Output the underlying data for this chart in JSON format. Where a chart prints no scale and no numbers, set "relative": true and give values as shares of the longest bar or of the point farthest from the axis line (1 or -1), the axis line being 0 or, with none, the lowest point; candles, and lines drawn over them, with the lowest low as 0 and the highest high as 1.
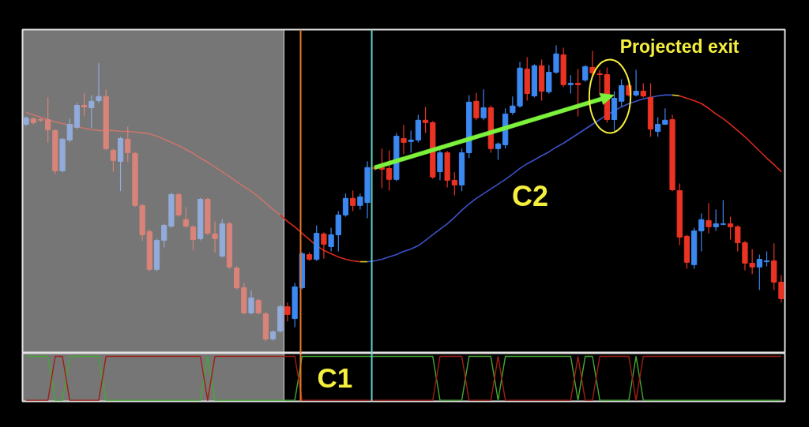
{
  "chart_data": [
    {
      "type": "candlestick",
      "relative": true,
      "categories": [
        null,
        null,
        null,
        null,
        null,
        null,
        null,
        null,
        null,
        null,
        null,
        null,
        null,
        null,
        null,
        null,
        null,
        null,
        null,
        null,
        null,
        null,
        null,
        null,
        null,
        null,
        null,
        null,
        null,
        null,
        null,
        null,
        null,
        null,
        null,
        null,
        null,
        null,
        null,
        null,
        null,
        null,
        null,
        null,
        null,
        null,
        null,
        null,
        null,
        null,
        null,
        null,
        null,
        null,
        null,
        null,
        null,
        null,
        null,
        null,
        null,
        null,
        null,
        null,
        null,
        null,
        null,
        null,
        null,
        null,
        null,
        null,
        null,
        null,
        null,
        null,
        null,
        null,
        null,
        null,
        null,
        null,
        null,
        null,
        null,
        null,
        null,
        null,
        null,
        null,
        null,
        null,
        null,
        null,
        null,
        null,
        null,
        null,
        null,
        null,
        null,
        null,
        null,
        null,
        null
      ],
      "ohlc": [
        [
          0.733,
          0.76,
          0.728,
          0.755
        ],
        [
          0.752,
          0.757,
          0.733,
          0.739
        ],
        [
          0.749,
          0.755,
          0.741,
          0.747
        ],
        [
          0.749,
          0.824,
          0.672,
          0.715
        ],
        [
          0.712,
          0.717,
          0.565,
          0.576
        ],
        [
          0.576,
          0.688,
          0.571,
          0.683
        ],
        [
          0.68,
          0.752,
          0.672,
          0.733
        ],
        [
          0.723,
          0.805,
          0.717,
          0.797
        ],
        [
          0.797,
          0.84,
          0.76,
          0.792
        ],
        [
          0.789,
          0.832,
          0.72,
          0.811
        ],
        [
          0.813,
          0.939,
          0.805,
          0.827
        ],
        [
          0.827,
          0.851,
          0.645,
          0.651
        ],
        [
          0.645,
          0.651,
          0.573,
          0.611
        ],
        [
          0.608,
          0.691,
          0.507,
          0.685
        ],
        [
          0.683,
          0.725,
          0.605,
          0.637
        ],
        [
          0.635,
          0.64,
          0.453,
          0.459
        ],
        [
          0.459,
          0.464,
          0.339,
          0.36
        ],
        [
          0.371,
          0.379,
          0.237,
          0.243
        ],
        [
          0.243,
          0.347,
          0.237,
          0.341
        ],
        [
          0.341,
          0.397,
          0.317,
          0.392
        ],
        [
          0.389,
          0.501,
          0.384,
          0.496
        ],
        [
          0.496,
          0.501,
          0.421,
          0.427
        ],
        [
          0.411,
          0.453,
          0.384,
          0.389
        ],
        [
          0.387,
          0.392,
          0.307,
          0.344
        ],
        [
          0.347,
          0.485,
          0.341,
          0.48
        ],
        [
          0.48,
          0.485,
          0.36,
          0.365
        ],
        [
          0.363,
          0.405,
          0.299,
          0.347
        ],
        [
          0.288,
          0.413,
          0.283,
          0.397
        ],
        [
          0.397,
          0.403,
          0.245,
          0.251
        ],
        [
          0.248,
          0.253,
          0.176,
          0.181
        ],
        [
          0.181,
          0.197,
          0.091,
          0.096
        ],
        [
          0.096,
          0.171,
          0.091,
          0.147
        ],
        [
          0.139,
          0.144,
          0.091,
          0.096
        ],
        [
          0.093,
          0.099,
          0,
          0.008
        ],
        [
          0.008,
          0.037,
          0.003,
          0.032
        ],
        [
          0.035,
          0.123,
          0.029,
          0.117
        ],
        [
          0.117,
          0.131,
          0.067,
          0.091
        ],
        [
          0.077,
          0.197,
          0.048,
          0.184
        ],
        [
          0.181,
          0.301,
          0.176,
          0.296
        ],
        [
          0.293,
          0.301,
          0.272,
          0.277
        ],
        [
          0.277,
          0.392,
          0.272,
          0.365
        ],
        [
          0.363,
          0.368,
          0.28,
          0.328
        ],
        [
          0.32,
          0.384,
          0.304,
          0.36
        ],
        [
          0.36,
          0.44,
          0.304,
          0.427
        ],
        [
          0.427,
          0.499,
          0.421,
          0.483
        ],
        [
          0.483,
          0.509,
          0.44,
          0.459
        ],
        [
          0.459,
          0.499,
          0.445,
          0.488
        ],
        [
          0.469,
          0.608,
          0.416,
          0.587
        ],
        [
          0.587,
          0.592,
          0.576,
          0.584
        ],
        [
          0.587,
          0.651,
          0.517,
          0.581
        ],
        [
          0.584,
          0.645,
          0.509,
          0.547
        ],
        [
          0.547,
          0.704,
          0.541,
          0.693
        ],
        [
          0.685,
          0.731,
          0.632,
          0.672
        ],
        [
          0.675,
          0.712,
          0.637,
          0.68
        ],
        [
          0.68,
          0.765,
          0.672,
          0.747
        ],
        [
          0.747,
          0.792,
          0.704,
          0.739
        ],
        [
          0.739,
          0.744,
          0.549,
          0.555
        ],
        [
          0.573,
          0.645,
          0.544,
          0.637
        ],
        [
          0.637,
          0.643,
          0.52,
          0.544
        ],
        [
          0.544,
          0.571,
          0.493,
          0.528
        ],
        [
          0.528,
          0.651,
          0.507,
          0.637
        ],
        [
          0.637,
          0.832,
          0.619,
          0.808
        ],
        [
          0.811,
          0.84,
          0.747,
          0.755
        ],
        [
          0.755,
          0.851,
          0.747,
          0.789
        ],
        [
          0.789,
          0.797,
          0.637,
          0.651
        ],
        [
          0.651,
          0.672,
          0.613,
          0.667
        ],
        [
          0.664,
          0.787,
          0.651,
          0.768
        ],
        [
          0.773,
          0.827,
          0.765,
          0.795
        ],
        [
          0.795,
          0.944,
          0.789,
          0.923
        ],
        [
          0.92,
          0.96,
          0.813,
          0.837
        ],
        [
          0.829,
          0.936,
          0.824,
          0.931
        ],
        [
          0.931,
          0.952,
          0.813,
          0.845
        ],
        [
          0.843,
          0.933,
          0.837,
          0.909
        ],
        [
          0.909,
          1,
          0.904,
          0.971
        ],
        [
          0.968,
          0.992,
          0.859,
          0.867
        ],
        [
          0.867,
          0.899,
          0.837,
          0.872
        ],
        [
          0.872,
          0.92,
          0.76,
          0.867
        ],
        [
          0.883,
          0.933,
          0.877,
          0.928
        ],
        [
          0.925,
          0.981,
          0.899,
          0.907
        ],
        [
          0.904,
          0.917,
          0.832,
          0.901
        ],
        [
          0.901,
          0.925,
          0.739,
          0.749
        ],
        [
          0.749,
          0.845,
          0.712,
          0.821
        ],
        [
          0.811,
          0.885,
          0.792,
          0.864
        ],
        [
          0.864,
          0.869,
          0.827,
          0.832
        ],
        [
          0.832,
          0.917,
          0.827,
          0.845
        ],
        [
          0.845,
          0.872,
          0.824,
          0.829
        ],
        [
          0.824,
          0.872,
          0.691,
          0.717
        ],
        [
          0.709,
          0.757,
          0.691,
          0.733
        ],
        [
          0.733,
          0.787,
          0.731,
          0.747
        ],
        [
          0.749,
          0.765,
          0.507,
          0.512
        ],
        [
          0.509,
          0.533,
          0.325,
          0.352
        ],
        [
          0.355,
          0.36,
          0.245,
          0.267
        ],
        [
          0.259,
          0.384,
          0.245,
          0.373
        ],
        [
          0.373,
          0.432,
          0.304,
          0.411
        ],
        [
          0.408,
          0.467,
          0.365,
          0.387
        ],
        [
          0.387,
          0.445,
          0.373,
          0.397
        ],
        [
          0.395,
          0.477,
          0.392,
          0.397
        ],
        [
          0.397,
          0.421,
          0.344,
          0.387
        ],
        [
          0.387,
          0.392,
          0.304,
          0.333
        ],
        [
          0.333,
          0.339,
          0.24,
          0.264
        ],
        [
          0.264,
          0.312,
          0.227,
          0.251
        ],
        [
          0.251,
          0.293,
          0.173,
          0.277
        ],
        [
          0.269,
          0.304,
          0.253,
          0.272
        ],
        [
          0.272,
          0.331,
          0.173,
          0.2
        ],
        [
          0.2,
          0.224,
          0.131,
          0.144
        ]
      ],
      "colors": [
        "#93abd8",
        "#d8847a",
        "#d8847a",
        "#d8847a",
        "#d8847a",
        "#93abd8",
        "#93abd8",
        "#93abd8",
        "#d8847a",
        "#93abd8",
        "#93abd8",
        "#d8847a",
        "#d8847a",
        "#93abd8",
        "#d8847a",
        "#d8847a",
        "#d8847a",
        "#d8847a",
        "#93abd8",
        "#93abd8",
        "#93abd8",
        "#d8847a",
        "#d8847a",
        "#d8847a",
        "#93abd8",
        "#d8847a",
        "#d8847a",
        "#93abd8",
        "#d8847a",
        "#d8847a",
        "#d8847a",
        "#93abd8",
        "#d8847a",
        "#d8847a",
        "#93abd8",
        "#93abd8",
        "#ea3323",
        "#3b88f0",
        "#3b88f0",
        "#ea3323",
        "#3b88f0",
        "#ea3323",
        "#3b88f0",
        "#3b88f0",
        "#3b88f0",
        "#ea3323",
        "#3b88f0",
        "#3b88f0",
        "#ea3323",
        "#ea3323",
        "#ea3323",
        "#3b88f0",
        "#ea3323",
        "#3b88f0",
        "#3b88f0",
        "#ea3323",
        "#ea3323",
        "#3b88f0",
        "#ea3323",
        "#ea3323",
        "#3b88f0",
        "#3b88f0",
        "#ea3323",
        "#3b88f0",
        "#ea3323",
        "#3b88f0",
        "#3b88f0",
        "#3b88f0",
        "#3b88f0",
        "#ea3323",
        "#3b88f0",
        "#ea3323",
        "#3b88f0",
        "#3b88f0",
        "#ea3323",
        "#3b88f0",
        "#ea3323",
        "#3b88f0",
        "#ea3323",
        "#ea3323",
        "#ea3323",
        "#3b88f0",
        "#3b88f0",
        "#ea3323",
        "#3b88f0",
        "#ea3323",
        "#ea3323",
        "#3b88f0",
        "#3b88f0",
        "#ea3323",
        "#ea3323",
        "#ea3323",
        "#3b88f0",
        "#3b88f0",
        "#ea3323",
        "#3b88f0",
        "#3b88f0",
        "#ea3323",
        "#ea3323",
        "#ea3323",
        "#ea3323",
        "#3b88f0",
        "#3b88f0",
        "#ea3323",
        "#ea3323"
      ],
      "series": [
        {
          "type": "line",
          "color": "#c9756b",
          "values": [
            0.773,
            0.765,
            0.757,
            0.749,
            0.741,
            0.736,
            0.731,
            0.725,
            0.72,
            0.715,
            0.712,
            0.712,
            0.712,
            0.709,
            0.709,
            0.707,
            0.704,
            0.701,
            0.693,
            0.683,
            0.672,
            0.661,
            0.648,
            0.635,
            0.619,
            0.605,
            0.589,
            0.573,
            0.557,
            0.539,
            0.523,
            0.507,
            0.488,
            0.467,
            0.445,
            0.427,
            null,
            null,
            null,
            null,
            null,
            null,
            null,
            null,
            null,
            null,
            null,
            null,
            null,
            null,
            null,
            null,
            null,
            null,
            null,
            null,
            null,
            null,
            null,
            null,
            null,
            null,
            null,
            null,
            null,
            null,
            null,
            null,
            null,
            null,
            null,
            null,
            null,
            null,
            null,
            null,
            null,
            null,
            null,
            null,
            null,
            null,
            null,
            null,
            null,
            null,
            null,
            null,
            null,
            null,
            null,
            null,
            null,
            null,
            null,
            null,
            null,
            null,
            null,
            null,
            null,
            null,
            null,
            null,
            null
          ]
        },
        {
          "type": "line",
          "color": "#d92a1c",
          "values": [
            null,
            null,
            null,
            null,
            null,
            null,
            null,
            null,
            null,
            null,
            null,
            null,
            null,
            null,
            null,
            null,
            null,
            null,
            null,
            null,
            null,
            null,
            null,
            null,
            null,
            null,
            null,
            null,
            null,
            null,
            null,
            null,
            null,
            null,
            null,
            0.427,
            0.405,
            0.387,
            0.365,
            0.344,
            0.323,
            0.307,
            0.296,
            0.285,
            0.277,
            0.272,
            0.269,
            null,
            null,
            null,
            null,
            null,
            null,
            null,
            null,
            null,
            null,
            null,
            null,
            null,
            null,
            null,
            null,
            null,
            null,
            null,
            null,
            null,
            null,
            null,
            null,
            null,
            null,
            null,
            null,
            null,
            null,
            null,
            null,
            null,
            null,
            null,
            null,
            null,
            null,
            null,
            null,
            null,
            null,
            null,
            null,
            null,
            null,
            null,
            null,
            null,
            null,
            null,
            null,
            null,
            null,
            null,
            null,
            null,
            null
          ]
        },
        {
          "type": "line",
          "color": "#d8cc2a",
          "values": [
            null,
            null,
            null,
            null,
            null,
            null,
            null,
            null,
            null,
            null,
            null,
            null,
            null,
            null,
            null,
            null,
            null,
            null,
            null,
            null,
            null,
            null,
            null,
            null,
            null,
            null,
            null,
            null,
            null,
            null,
            null,
            null,
            null,
            null,
            null,
            null,
            null,
            null,
            null,
            null,
            null,
            null,
            null,
            null,
            null,
            null,
            0.269,
            0.269,
            null,
            null,
            null,
            null,
            null,
            null,
            null,
            null,
            null,
            null,
            null,
            null,
            null,
            null,
            null,
            null,
            null,
            null,
            null,
            null,
            null,
            null,
            null,
            null,
            null,
            null,
            null,
            null,
            null,
            null,
            null,
            null,
            null,
            null,
            null,
            null,
            null,
            null,
            null,
            null,
            null,
            null,
            null,
            null,
            null,
            null,
            null,
            null,
            null,
            null,
            null,
            null,
            null,
            null,
            null,
            null,
            null
          ]
        },
        {
          "type": "line",
          "color": "#3c52c8",
          "values": [
            null,
            null,
            null,
            null,
            null,
            null,
            null,
            null,
            null,
            null,
            null,
            null,
            null,
            null,
            null,
            null,
            null,
            null,
            null,
            null,
            null,
            null,
            null,
            null,
            null,
            null,
            null,
            null,
            null,
            null,
            null,
            null,
            null,
            null,
            null,
            null,
            null,
            null,
            null,
            null,
            null,
            null,
            null,
            null,
            null,
            null,
            null,
            0.269,
            0.272,
            0.277,
            0.285,
            0.293,
            0.304,
            0.312,
            0.323,
            0.341,
            0.36,
            0.379,
            0.397,
            0.419,
            0.443,
            0.464,
            0.483,
            0.499,
            0.515,
            0.531,
            0.547,
            0.565,
            0.584,
            0.6,
            0.613,
            0.627,
            0.64,
            0.656,
            0.669,
            0.685,
            0.701,
            0.717,
            0.733,
            0.749,
            0.765,
            0.779,
            0.792,
            0.803,
            0.811,
            0.819,
            0.824,
            0.829,
            0.832,
            0.832,
            null,
            null,
            null,
            null,
            null,
            null,
            null,
            null,
            null,
            null,
            null,
            null,
            null,
            null,
            null
          ]
        },
        {
          "type": "line",
          "color": "#d8cc2a",
          "values": [
            null,
            null,
            null,
            null,
            null,
            null,
            null,
            null,
            null,
            null,
            null,
            null,
            null,
            null,
            null,
            null,
            null,
            null,
            null,
            null,
            null,
            null,
            null,
            null,
            null,
            null,
            null,
            null,
            null,
            null,
            null,
            null,
            null,
            null,
            null,
            null,
            null,
            null,
            null,
            null,
            null,
            null,
            null,
            null,
            null,
            null,
            null,
            null,
            null,
            null,
            null,
            null,
            null,
            null,
            null,
            null,
            null,
            null,
            null,
            null,
            null,
            null,
            null,
            null,
            null,
            null,
            null,
            null,
            null,
            null,
            null,
            null,
            null,
            null,
            null,
            null,
            null,
            null,
            null,
            null,
            null,
            null,
            null,
            null,
            null,
            null,
            null,
            null,
            null,
            0.832,
            0.829,
            null,
            null,
            null,
            null,
            null,
            null,
            null,
            null,
            null,
            null,
            null,
            null,
            null,
            null
          ]
        },
        {
          "type": "line",
          "color": "#d92a1c",
          "values": [
            null,
            null,
            null,
            null,
            null,
            null,
            null,
            null,
            null,
            null,
            null,
            null,
            null,
            null,
            null,
            null,
            null,
            null,
            null,
            null,
            null,
            null,
            null,
            null,
            null,
            null,
            null,
            null,
            null,
            null,
            null,
            null,
            null,
            null,
            null,
            null,
            null,
            null,
            null,
            null,
            null,
            null,
            null,
            null,
            null,
            null,
            null,
            null,
            null,
            null,
            null,
            null,
            null,
            null,
            null,
            null,
            null,
            null,
            null,
            null,
            null,
            null,
            null,
            null,
            null,
            null,
            null,
            null,
            null,
            null,
            null,
            null,
            null,
            null,
            null,
            null,
            null,
            null,
            null,
            null,
            null,
            null,
            null,
            null,
            null,
            null,
            null,
            null,
            null,
            null,
            0.829,
            0.821,
            0.813,
            0.803,
            0.787,
            0.768,
            0.752,
            0.733,
            0.712,
            0.691,
            0.667,
            0.643,
            0.619,
            0.597,
            0.573
          ]
        }
      ],
      "annotations": [
        "Projected exit",
        "C2"
      ]
    },
    {
      "type": "line",
      "relative": true,
      "categories": [
        null,
        null,
        null,
        null,
        null,
        null,
        null,
        null,
        null,
        null,
        null,
        null,
        null,
        null,
        null,
        null,
        null,
        null,
        null,
        null,
        null,
        null,
        null,
        null,
        null,
        null,
        null,
        null,
        null,
        null,
        null,
        null,
        null,
        null,
        null,
        null,
        null,
        null,
        null,
        null,
        null,
        null,
        null,
        null,
        null,
        null,
        null,
        null,
        null,
        null,
        null,
        null,
        null,
        null,
        null,
        null,
        null,
        null,
        null,
        null,
        null,
        null,
        null,
        null,
        null,
        null,
        null,
        null,
        null,
        null,
        null,
        null,
        null,
        null,
        null,
        null,
        null,
        null,
        null,
        null,
        null,
        null,
        null,
        null,
        null,
        null,
        null,
        null,
        null,
        null,
        null,
        null,
        null,
        null,
        null,
        null,
        null,
        null,
        null,
        null,
        null,
        null,
        null,
        null,
        null
      ],
      "series": [
        {
          "type": "line",
          "color": "#45a832",
          "values": [
            1,
            1,
            1,
            1,
            0,
            0,
            1,
            1,
            1,
            1,
            1,
            0,
            0,
            0,
            0,
            0,
            0,
            0,
            0,
            0,
            0,
            0,
            0,
            0,
            0,
            1,
            0,
            0,
            0,
            0,
            0,
            0,
            0,
            0,
            0,
            0,
            0,
            0,
            1,
            1,
            1,
            1,
            1,
            1,
            1,
            1,
            1,
            1,
            1,
            1,
            1,
            1,
            1,
            1,
            1,
            1,
            1,
            0,
            0,
            0,
            0,
            1,
            1,
            1,
            1,
            0,
            1,
            1,
            1,
            1,
            1,
            1,
            1,
            1,
            1,
            1,
            0,
            1,
            1,
            0,
            0,
            0,
            0,
            0,
            1,
            0,
            0,
            0,
            0,
            0,
            0,
            0,
            0,
            0,
            0,
            0,
            0,
            0,
            0,
            0,
            0,
            0,
            0,
            0,
            0
          ]
        },
        {
          "type": "line",
          "color": "#a11e14",
          "values": [
            0,
            0,
            0,
            0,
            1,
            1,
            0,
            0,
            0,
            0,
            0,
            1,
            1,
            1,
            1,
            1,
            1,
            1,
            1,
            1,
            1,
            1,
            1,
            1,
            1,
            0,
            1,
            1,
            1,
            1,
            1,
            1,
            1,
            1,
            1,
            1,
            1,
            1,
            0,
            0,
            0,
            0,
            0,
            0,
            0,
            0,
            0,
            0,
            0,
            0,
            0,
            0,
            0,
            0,
            0,
            0,
            0,
            1,
            1,
            1,
            1,
            0,
            0,
            0,
            0,
            1,
            0,
            0,
            0,
            0,
            0,
            0,
            0,
            0,
            0,
            0,
            1,
            0,
            0,
            1,
            1,
            1,
            1,
            1,
            0,
            1,
            1,
            1,
            1,
            1,
            1,
            1,
            1,
            1,
            1,
            1,
            1,
            1,
            1,
            1,
            1,
            1,
            1,
            1,
            1
          ]
        }
      ],
      "annotations": [
        "C1"
      ]
    }
  ]
}
